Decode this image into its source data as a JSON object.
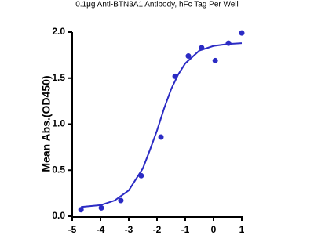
{
  "chart_data": {
    "type": "scatter",
    "title": "0.1μg Anti-BTN3A1 Antibody, hFc Tag Per Well",
    "y_label": "Mean Abs.(OD450)",
    "color": "#2b2bc4",
    "x": [
      -4.69,
      -3.97,
      -3.28,
      -2.56,
      -1.86,
      -1.36,
      -0.89,
      -0.42,
      0.06,
      0.53,
      1.0
    ],
    "values": [
      0.07,
      0.09,
      0.17,
      0.44,
      0.86,
      1.52,
      1.74,
      1.83,
      1.69,
      1.88,
      1.99
    ],
    "fit": {
      "x": [
        -4.69,
        -4,
        -3.5,
        -3,
        -2.5,
        -2.25,
        -2,
        -1.75,
        -1.5,
        -1.25,
        -1,
        -0.5,
        0,
        0.5,
        1
      ],
      "values": [
        0.1,
        0.12,
        0.17,
        0.28,
        0.52,
        0.72,
        0.93,
        1.17,
        1.38,
        1.54,
        1.66,
        1.8,
        1.85,
        1.87,
        1.88
      ]
    },
    "xlim": [
      -5,
      1
    ],
    "xticks": [
      -5,
      -4,
      -3,
      -2,
      -1,
      0,
      1
    ],
    "ylim": [
      0,
      2
    ],
    "yticks": [
      {
        "value": 0,
        "label": "0.0"
      },
      {
        "value": 0.5,
        "label": "0.5"
      },
      {
        "value": 1,
        "label": "1.0"
      },
      {
        "value": 1.5,
        "label": "1.5"
      },
      {
        "value": 2,
        "label": "2.0"
      }
    ]
  }
}
